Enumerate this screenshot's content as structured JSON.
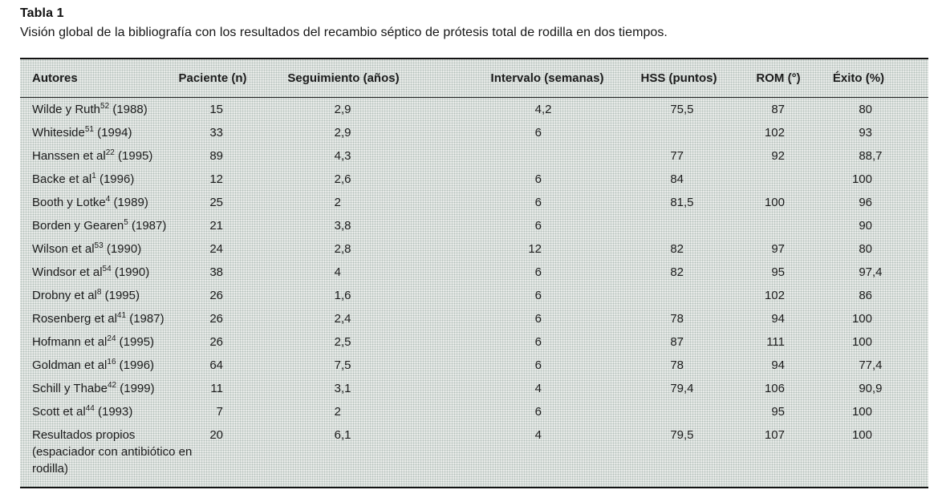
{
  "title": "Tabla 1",
  "caption": "Visión global de la bibliografía con los resultados del recambio séptico de prótesis total de rodilla en dos tiempos.",
  "table": {
    "columns": [
      "Autores",
      "Paciente (n)",
      "Seguimiento (años)",
      "Intervalo (semanas)",
      "HSS (puntos)",
      "ROM (°)",
      "Éxito (%)"
    ],
    "rows": [
      {
        "autor": "Wilde y Ruth",
        "ref": "52",
        "year": "(1988)",
        "paciente": "15",
        "seguimiento": "2,9",
        "intervalo": "4,2",
        "hss": "75,5",
        "rom": "87",
        "exito": "80"
      },
      {
        "autor": "Whiteside",
        "ref": "51",
        "year": "(1994)",
        "paciente": "33",
        "seguimiento": "2,9",
        "intervalo": "6",
        "hss": "",
        "rom": "102",
        "exito": "93"
      },
      {
        "autor": "Hanssen et al",
        "ref": "22",
        "year": "(1995)",
        "paciente": "89",
        "seguimiento": "4,3",
        "intervalo": "",
        "hss": "77",
        "rom": "92",
        "exito": "88,7"
      },
      {
        "autor": "Backe et al",
        "ref": "1",
        "year": "(1996)",
        "paciente": "12",
        "seguimiento": "2,6",
        "intervalo": "6",
        "hss": "84",
        "rom": "",
        "exito": "100"
      },
      {
        "autor": "Booth y Lotke",
        "ref": "4",
        "year": "(1989)",
        "paciente": "25",
        "seguimiento": "2",
        "intervalo": "6",
        "hss": "81,5",
        "rom": "100",
        "exito": "96"
      },
      {
        "autor": "Borden y Gearen",
        "ref": "5",
        "year": "(1987)",
        "paciente": "21",
        "seguimiento": "3,8",
        "intervalo": "6",
        "hss": "",
        "rom": "",
        "exito": "90"
      },
      {
        "autor": "Wilson et al",
        "ref": "53",
        "year": "(1990)",
        "paciente": "24",
        "seguimiento": "2,8",
        "intervalo": "12",
        "hss": "82",
        "rom": "97",
        "exito": "80"
      },
      {
        "autor": "Windsor et al",
        "ref": "54",
        "year": "(1990)",
        "paciente": "38",
        "seguimiento": "4",
        "intervalo": "6",
        "hss": "82",
        "rom": "95",
        "exito": "97,4"
      },
      {
        "autor": "Drobny et al",
        "ref": "8",
        "year": "(1995)",
        "paciente": "26",
        "seguimiento": "1,6",
        "intervalo": "6",
        "hss": "",
        "rom": "102",
        "exito": "86"
      },
      {
        "autor": "Rosenberg et al",
        "ref": "41",
        "year": "(1987)",
        "paciente": "26",
        "seguimiento": "2,4",
        "intervalo": "6",
        "hss": "78",
        "rom": "94",
        "exito": "100"
      },
      {
        "autor": "Hofmann et al",
        "ref": "24",
        "year": "(1995)",
        "paciente": "26",
        "seguimiento": "2,5",
        "intervalo": "6",
        "hss": "87",
        "rom": "111",
        "exito": "100"
      },
      {
        "autor": "Goldman et al",
        "ref": "16",
        "year": "(1996)",
        "paciente": "64",
        "seguimiento": "7,5",
        "intervalo": "6",
        "hss": "78",
        "rom": "94",
        "exito": "77,4"
      },
      {
        "autor": "Schill y Thabe",
        "ref": "42",
        "year": "(1999)",
        "paciente": "11",
        "seguimiento": "3,1",
        "intervalo": "4",
        "hss": "79,4",
        "rom": "106",
        "exito": "90,9"
      },
      {
        "autor": "Scott et al",
        "ref": "44",
        "year": "(1993)",
        "paciente": "7",
        "seguimiento": "2",
        "intervalo": "6",
        "hss": "",
        "rom": "95",
        "exito": "100"
      },
      {
        "autor": "Resultados propios (espaciador con antibiótico en rodilla)",
        "ref": "",
        "year": "",
        "paciente": "20",
        "seguimiento": "6,1",
        "intervalo": "4",
        "hss": "79,5",
        "rom": "107",
        "exito": "100"
      }
    ]
  }
}
